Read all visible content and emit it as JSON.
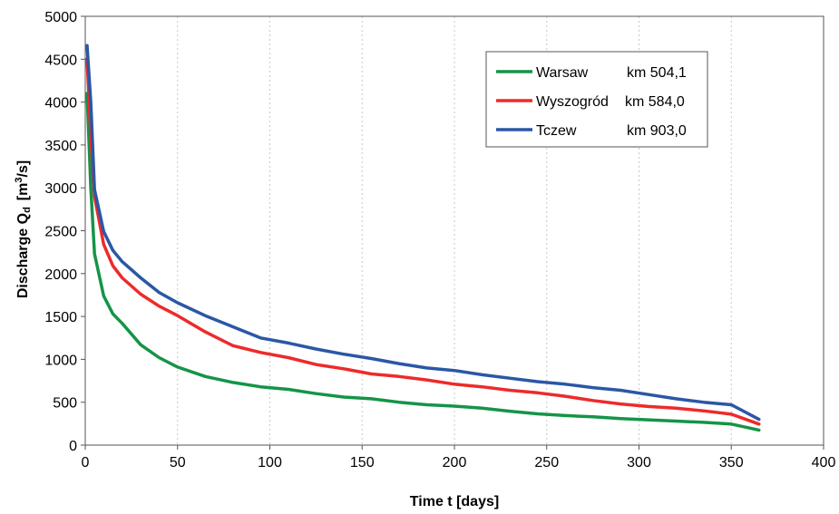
{
  "chart_data": {
    "type": "line",
    "xlabel": "Time t [days]",
    "ylabel_main": "Discharge Q",
    "ylabel_sub": "d",
    "ylabel_unit": "[m",
    "ylabel_sup": "3",
    "ylabel_tail": "/s]",
    "xlim": [
      0,
      400
    ],
    "ylim": [
      0,
      5000
    ],
    "x_ticks": [
      0,
      50,
      100,
      150,
      200,
      250,
      300,
      350,
      400
    ],
    "y_ticks": [
      0,
      500,
      1000,
      1500,
      2000,
      2500,
      3000,
      3500,
      4000,
      4500,
      5000
    ],
    "grid": "vertical dashed",
    "legend_position": "top-right",
    "series": [
      {
        "name": "Warsaw",
        "km": "km 504,1",
        "color": "#159447",
        "points": [
          [
            1,
            4100
          ],
          [
            3,
            3000
          ],
          [
            5,
            2230
          ],
          [
            10,
            1740
          ],
          [
            15,
            1530
          ],
          [
            20,
            1420
          ],
          [
            30,
            1170
          ],
          [
            40,
            1020
          ],
          [
            50,
            910
          ],
          [
            65,
            800
          ],
          [
            80,
            730
          ],
          [
            95,
            680
          ],
          [
            110,
            650
          ],
          [
            125,
            600
          ],
          [
            140,
            560
          ],
          [
            155,
            540
          ],
          [
            170,
            500
          ],
          [
            185,
            470
          ],
          [
            200,
            455
          ],
          [
            215,
            430
          ],
          [
            230,
            395
          ],
          [
            245,
            365
          ],
          [
            260,
            345
          ],
          [
            275,
            330
          ],
          [
            290,
            310
          ],
          [
            305,
            295
          ],
          [
            320,
            280
          ],
          [
            335,
            265
          ],
          [
            350,
            245
          ],
          [
            365,
            175
          ]
        ]
      },
      {
        "name": "Wyszogród",
        "km": "km 584,0",
        "color": "#ee2a2a",
        "points": [
          [
            1,
            4500
          ],
          [
            3,
            3600
          ],
          [
            5,
            2900
          ],
          [
            10,
            2340
          ],
          [
            15,
            2090
          ],
          [
            20,
            1950
          ],
          [
            30,
            1760
          ],
          [
            40,
            1620
          ],
          [
            50,
            1510
          ],
          [
            65,
            1320
          ],
          [
            80,
            1160
          ],
          [
            95,
            1080
          ],
          [
            110,
            1020
          ],
          [
            125,
            940
          ],
          [
            140,
            890
          ],
          [
            155,
            830
          ],
          [
            170,
            800
          ],
          [
            185,
            760
          ],
          [
            200,
            710
          ],
          [
            215,
            680
          ],
          [
            230,
            640
          ],
          [
            245,
            610
          ],
          [
            260,
            570
          ],
          [
            275,
            520
          ],
          [
            290,
            480
          ],
          [
            305,
            450
          ],
          [
            320,
            430
          ],
          [
            335,
            400
          ],
          [
            350,
            360
          ],
          [
            365,
            245
          ]
        ]
      },
      {
        "name": "Tczew",
        "km": "km 903,0",
        "color": "#2b57a5",
        "points": [
          [
            1,
            4660
          ],
          [
            3,
            4000
          ],
          [
            5,
            2980
          ],
          [
            10,
            2490
          ],
          [
            15,
            2270
          ],
          [
            20,
            2140
          ],
          [
            30,
            1950
          ],
          [
            40,
            1780
          ],
          [
            50,
            1660
          ],
          [
            65,
            1510
          ],
          [
            80,
            1380
          ],
          [
            95,
            1250
          ],
          [
            110,
            1190
          ],
          [
            125,
            1120
          ],
          [
            140,
            1060
          ],
          [
            155,
            1010
          ],
          [
            170,
            950
          ],
          [
            185,
            900
          ],
          [
            200,
            870
          ],
          [
            215,
            820
          ],
          [
            230,
            780
          ],
          [
            245,
            740
          ],
          [
            260,
            710
          ],
          [
            275,
            670
          ],
          [
            290,
            640
          ],
          [
            305,
            590
          ],
          [
            320,
            540
          ],
          [
            335,
            500
          ],
          [
            350,
            470
          ],
          [
            365,
            300
          ]
        ]
      }
    ]
  }
}
